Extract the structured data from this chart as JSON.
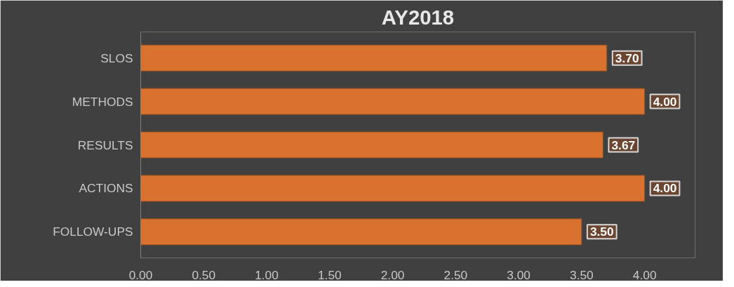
{
  "chart_data": {
    "type": "bar",
    "orientation": "horizontal",
    "title": "AY2018",
    "categories": [
      "SLOS",
      "METHODS",
      "RESULTS",
      "ACTIONS",
      "FOLLOW-UPS"
    ],
    "values": [
      3.7,
      4.0,
      3.67,
      4.0,
      3.5
    ],
    "value_labels": [
      "3.70",
      "4.00",
      "3.67",
      "4.00",
      "3.50"
    ],
    "color": "#d9722f",
    "xlim": [
      0,
      4.4
    ],
    "xticks": [
      {
        "value": 0,
        "label": "0.00"
      },
      {
        "value": 0.5,
        "label": "0.50"
      },
      {
        "value": 1,
        "label": "1.00"
      },
      {
        "value": 1.5,
        "label": "1.50"
      },
      {
        "value": 2,
        "label": "2.00"
      },
      {
        "value": 2.5,
        "label": "2.50"
      },
      {
        "value": 3,
        "label": "3.00"
      },
      {
        "value": 3.5,
        "label": "3.50"
      },
      {
        "value": 4,
        "label": "4.00"
      }
    ],
    "grid": false
  }
}
